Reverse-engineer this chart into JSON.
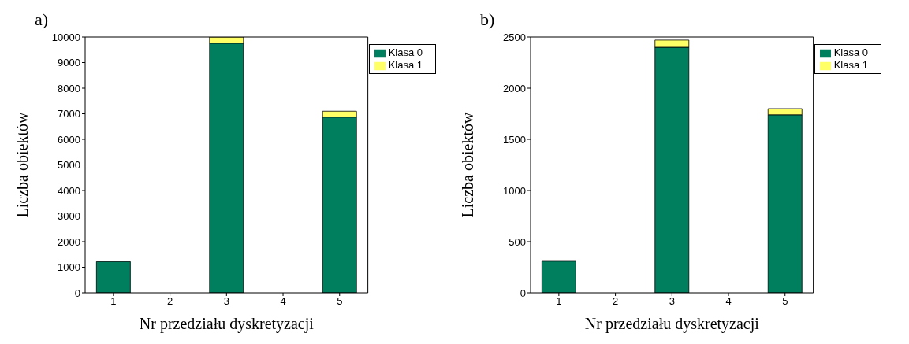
{
  "chart_data": [
    {
      "type": "bar",
      "annotations": [
        "a)"
      ],
      "xlabel": "Nr przedziału dyskretyzacji",
      "ylabel": "Liczba obiektów",
      "categories": [
        "1",
        "2",
        "3",
        "4",
        "5"
      ],
      "stacked": true,
      "series": [
        {
          "name": "Klasa 0",
          "color": "#007f5f",
          "values": [
            1220,
            null,
            9760,
            null,
            6870
          ]
        },
        {
          "name": "Klasa 1",
          "color": "#ffff66",
          "values": [
            null,
            0,
            250,
            0,
            230
          ]
        }
      ],
      "ylim": [
        0,
        10000
      ],
      "yticks": [
        0,
        1000,
        2000,
        3000,
        4000,
        5000,
        6000,
        7000,
        8000,
        9000,
        10000
      ],
      "legend": "top right",
      "grid": false
    },
    {
      "type": "bar",
      "annotations": [
        "b)"
      ],
      "xlabel": "Nr przedziału dyskretyzacji",
      "ylabel": "Liczba obiektów",
      "categories": [
        "1",
        "2",
        "3",
        "4",
        "5"
      ],
      "stacked": true,
      "series": [
        {
          "name": "Klasa 0",
          "color": "#007f5f",
          "values": [
            310,
            null,
            2400,
            0,
            1740
          ]
        },
        {
          "name": "Klasa 1",
          "color": "#ffff66",
          "values": [
            5,
            0,
            70,
            0,
            60
          ]
        }
      ],
      "ylim": [
        0,
        2500
      ],
      "yticks": [
        0,
        500,
        1000,
        1500,
        2000,
        2500
      ],
      "legend": "top right",
      "grid": false
    }
  ]
}
